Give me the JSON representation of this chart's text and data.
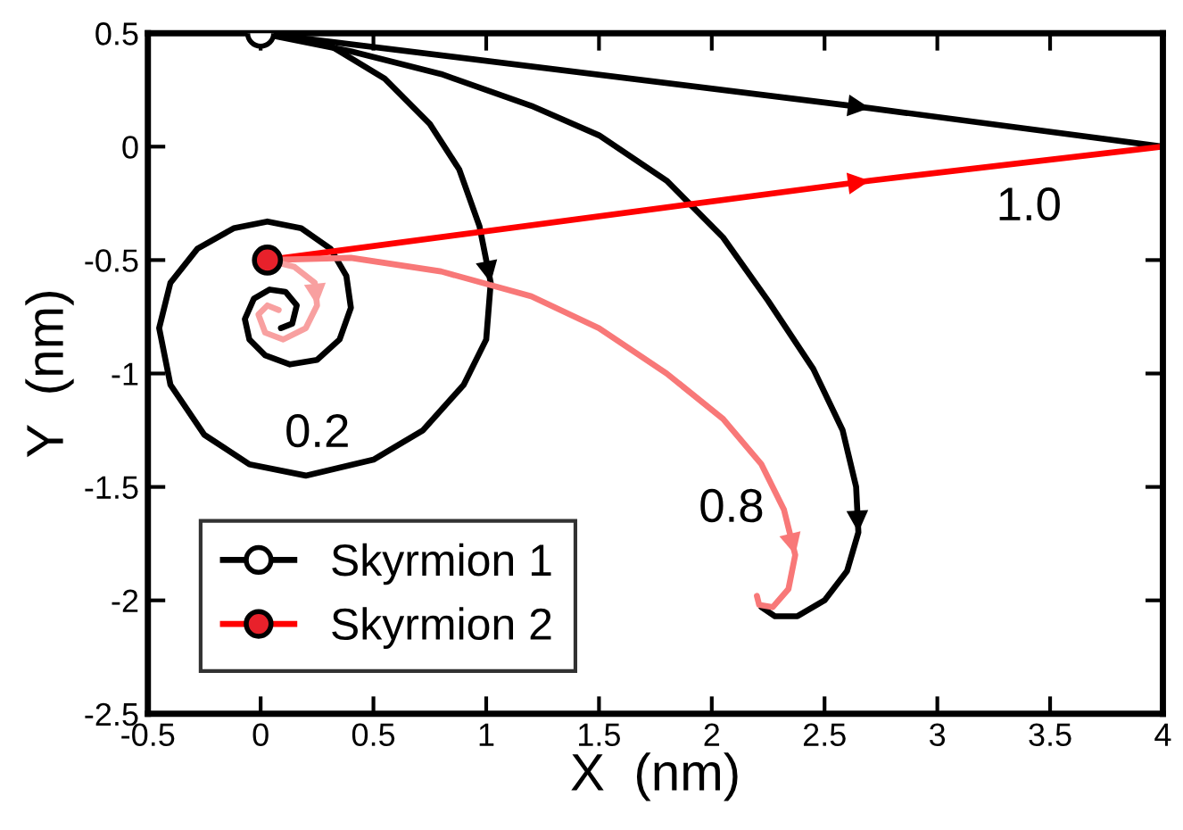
{
  "chart_data": {
    "type": "line",
    "xlabel": "X  (nm)",
    "ylabel": "Y  (nm)",
    "xlim": [
      -0.5,
      4
    ],
    "ylim": [
      -2.5,
      0.5
    ],
    "xticks": [
      -0.5,
      0,
      0.5,
      1,
      1.5,
      2,
      2.5,
      3,
      3.5,
      4
    ],
    "yticks": [
      -2.5,
      -2,
      -1.5,
      -1,
      -0.5,
      0,
      0.5
    ],
    "grid": false,
    "legend": "bottom left",
    "line_style": "solid",
    "series": [
      {
        "name": "Skyrmion 1",
        "color": "#000000",
        "x": [
          0,
          2.7,
          4
        ],
        "values": [
          0.5,
          0.17,
          0
        ]
      },
      {
        "color": "#000000",
        "x": [
          0,
          0.4,
          0.8,
          1.2,
          1.5,
          1.8,
          2.05,
          2.25,
          2.45,
          2.58,
          2.64,
          2.65,
          2.6,
          2.5,
          2.38,
          2.28,
          2.22
        ],
        "values": [
          0.5,
          0.42,
          0.32,
          0.18,
          0.05,
          -0.15,
          -0.4,
          -0.68,
          -0.98,
          -1.25,
          -1.5,
          -1.7,
          -1.87,
          -2.0,
          -2.07,
          -2.07,
          -2.03
        ]
      },
      {
        "color": "#000000",
        "x": [
          0,
          0.3,
          0.55,
          0.75,
          0.88,
          0.97,
          1.02,
          1.0,
          0.9,
          0.72,
          0.5,
          0.2,
          -0.05,
          -0.25,
          -0.4,
          -0.45,
          -0.4,
          -0.28,
          -0.12,
          0.03,
          0.18,
          0.31,
          0.38,
          0.4,
          0.35,
          0.25,
          0.13,
          0.02,
          -0.05,
          -0.07,
          -0.03,
          0.04,
          0.11,
          0.16,
          0.14,
          0.09
        ],
        "values": [
          0.5,
          0.45,
          0.3,
          0.1,
          -0.1,
          -0.35,
          -0.6,
          -0.85,
          -1.05,
          -1.25,
          -1.38,
          -1.45,
          -1.4,
          -1.27,
          -1.05,
          -0.8,
          -0.6,
          -0.45,
          -0.36,
          -0.33,
          -0.36,
          -0.45,
          -0.57,
          -0.71,
          -0.85,
          -0.94,
          -0.96,
          -0.92,
          -0.85,
          -0.76,
          -0.67,
          -0.63,
          -0.64,
          -0.7,
          -0.78,
          -0.8
        ]
      },
      {
        "name": "Skyrmion 2",
        "color": "#ff0000",
        "x": [
          0.03,
          2.7,
          4
        ],
        "values": [
          -0.5,
          -0.15,
          0
        ]
      },
      {
        "color": "#f87878",
        "x": [
          0.03,
          0.4,
          0.8,
          1.2,
          1.5,
          1.8,
          2.05,
          2.22,
          2.32,
          2.37,
          2.34,
          2.27,
          2.21,
          2.2
        ],
        "values": [
          -0.5,
          -0.49,
          -0.55,
          -0.66,
          -0.8,
          -1.0,
          -1.2,
          -1.4,
          -1.6,
          -1.8,
          -1.95,
          -2.03,
          -2.02,
          -1.98
        ]
      },
      {
        "color": "#f8a0a0",
        "x": [
          0.03,
          0.15,
          0.24,
          0.25,
          0.2,
          0.1,
          0.02,
          -0.01,
          0.03,
          0.08
        ],
        "values": [
          -0.5,
          -0.53,
          -0.6,
          -0.7,
          -0.8,
          -0.85,
          -0.82,
          -0.74,
          -0.7,
          -0.72
        ]
      },
      {
        "type": "scatter",
        "marker": "circle",
        "color": "#ffffff",
        "x": [
          0
        ],
        "values": [
          0.5
        ]
      },
      {
        "type": "scatter",
        "marker": "circle",
        "color": "#e8212b",
        "x": [
          0.03
        ],
        "values": [
          -0.5
        ]
      }
    ],
    "annotations": [
      "1.0",
      "0.2",
      "0.8"
    ]
  }
}
